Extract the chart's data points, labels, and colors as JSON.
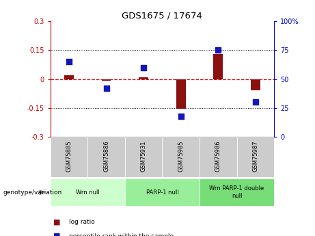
{
  "title": "GDS1675 / 17674",
  "samples": [
    "GSM75885",
    "GSM75886",
    "GSM75931",
    "GSM75985",
    "GSM75986",
    "GSM75987"
  ],
  "log_ratio": [
    0.02,
    -0.01,
    0.01,
    -0.155,
    0.13,
    -0.06
  ],
  "percentile_rank": [
    65,
    42,
    60,
    18,
    75,
    30
  ],
  "groups": [
    {
      "label": "Wrn null",
      "start": 0,
      "end": 1,
      "color": "#ccffcc"
    },
    {
      "label": "PARP-1 null",
      "start": 2,
      "end": 3,
      "color": "#99ee99"
    },
    {
      "label": "Wrn PARP-1 double\nnull",
      "start": 4,
      "end": 5,
      "color": "#77dd77"
    }
  ],
  "ylim_left": [
    -0.3,
    0.3
  ],
  "ylim_right": [
    0,
    100
  ],
  "yticks_left": [
    -0.3,
    -0.15,
    0,
    0.15,
    0.3
  ],
  "yticks_right": [
    0,
    25,
    50,
    75,
    100
  ],
  "bar_color": "#8B1010",
  "dot_color": "#1515BB",
  "background_color": "#ffffff",
  "sample_box_color": "#cccccc",
  "left_axis_color": "#cc0000",
  "right_axis_color": "#0000cc",
  "genotype_label": "genotype/variation"
}
